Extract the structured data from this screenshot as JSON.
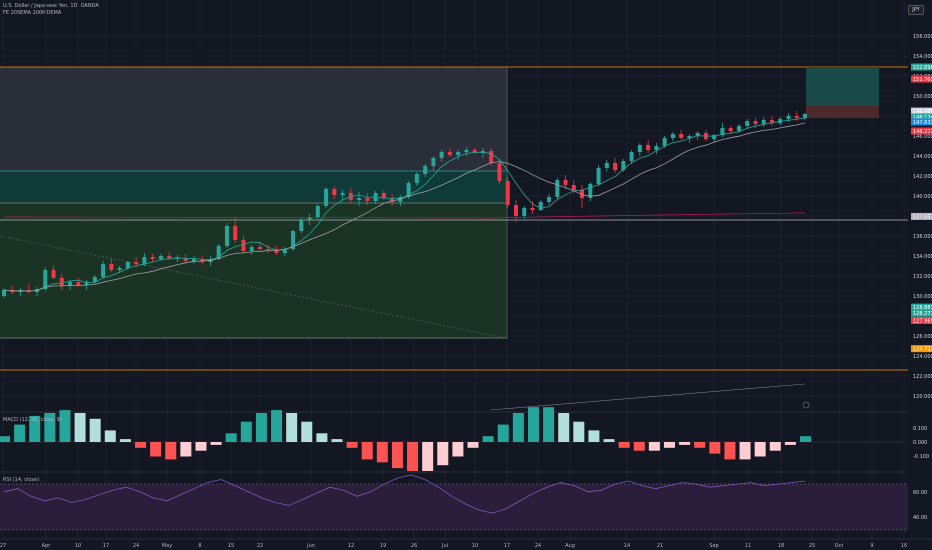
{
  "header": {
    "symbol_line": "U.S. Dollar / Japanese Yen, 1D, OANDA",
    "indicator_line": "FE 20SEMA 200MDEMA",
    "currency_button": "JPY"
  },
  "price_axis": {
    "ticks": [
      "156.000",
      "154.000",
      "152.000",
      "150.000",
      "148.000",
      "146.000",
      "144.000",
      "142.000",
      "140.000",
      "138.000",
      "136.000",
      "134.000",
      "132.000",
      "130.000",
      "128.000",
      "126.000",
      "124.000",
      "122.000",
      "120.000"
    ],
    "tags": [
      {
        "text": "152.898",
        "value": 152.898,
        "color": "#26a69a"
      },
      {
        "text": "151.703",
        "value": 151.703,
        "color": "#f23645"
      },
      {
        "text": "148.488",
        "value": 148.488,
        "color": "#d1d4dc"
      },
      {
        "text": "148.174",
        "value": 147.9,
        "color": "#26a69a"
      },
      {
        "text": "147.633",
        "value": 147.4,
        "color": "#1e88e5"
      },
      {
        "text": "146.272",
        "value": 146.5,
        "color": "#f23645"
      },
      {
        "text": "137.957",
        "value": 137.957,
        "color": "#b2b5be"
      },
      {
        "text": "128.887",
        "value": 128.887,
        "color": "#26a69a"
      },
      {
        "text": "128.277",
        "value": 128.277,
        "color": "#26a69a"
      },
      {
        "text": "127.985",
        "value": 127.55,
        "color": "#f23645"
      },
      {
        "text": "124.733",
        "value": 124.733,
        "color": "#ff9800"
      }
    ]
  },
  "macd": {
    "label": "MACD (12, 26, close, 9)",
    "ticks": [
      "0.100",
      "0.000",
      "-0.100"
    ]
  },
  "rsi": {
    "label": "RSI (14, close)",
    "ticks": [
      "60.00",
      "40.00"
    ]
  },
  "time_axis": [
    "27",
    "Apr",
    "10",
    "17",
    "24",
    "May",
    "8",
    "15",
    "22",
    "Jun",
    "12",
    "19",
    "26",
    "Jul",
    "10",
    "17",
    "24",
    "Aug",
    "14",
    "21",
    "Sep",
    "11",
    "18",
    "25",
    "Oct",
    "9",
    "16"
  ],
  "chart_data": {
    "type": "candlestick",
    "instrument": "USDJPY",
    "candles": [
      [
        130.0,
        130.8,
        129.8,
        130.6
      ],
      [
        130.6,
        131.0,
        130.2,
        130.4
      ],
      [
        130.4,
        130.8,
        130.0,
        130.6
      ],
      [
        130.6,
        131.2,
        130.3,
        130.4
      ],
      [
        130.4,
        130.9,
        130.0,
        130.7
      ],
      [
        130.7,
        132.9,
        130.5,
        132.6
      ],
      [
        132.6,
        133.1,
        131.7,
        131.8
      ],
      [
        131.8,
        132.2,
        130.6,
        131.0
      ],
      [
        131.0,
        131.6,
        130.6,
        131.4
      ],
      [
        131.4,
        131.8,
        130.9,
        131.1
      ],
      [
        131.1,
        131.6,
        130.6,
        131.4
      ],
      [
        131.4,
        132.1,
        131.1,
        131.9
      ],
      [
        131.9,
        133.5,
        131.7,
        133.2
      ],
      [
        133.2,
        133.7,
        132.4,
        132.6
      ],
      [
        132.6,
        133.0,
        132.3,
        132.8
      ],
      [
        132.8,
        133.5,
        132.6,
        133.4
      ],
      [
        133.4,
        133.9,
        132.8,
        133.2
      ],
      [
        133.2,
        134.3,
        133.0,
        133.9
      ],
      [
        133.9,
        134.2,
        133.4,
        133.7
      ],
      [
        133.7,
        134.2,
        133.5,
        134.0
      ],
      [
        134.0,
        134.4,
        133.6,
        133.8
      ],
      [
        133.8,
        134.1,
        133.4,
        133.8
      ],
      [
        133.8,
        134.2,
        133.3,
        133.5
      ],
      [
        133.5,
        134.0,
        133.2,
        133.7
      ],
      [
        133.7,
        134.1,
        133.1,
        133.4
      ],
      [
        133.4,
        134.0,
        133.0,
        133.7
      ],
      [
        133.7,
        135.2,
        133.6,
        135.0
      ],
      [
        135.0,
        137.3,
        134.8,
        137.0
      ],
      [
        137.0,
        137.8,
        135.3,
        135.6
      ],
      [
        135.6,
        136.0,
        134.2,
        134.5
      ],
      [
        134.5,
        135.1,
        134.1,
        134.9
      ],
      [
        134.9,
        135.4,
        134.6,
        134.7
      ],
      [
        134.7,
        135.1,
        134.3,
        134.6
      ],
      [
        134.6,
        135.0,
        134.1,
        134.3
      ],
      [
        134.3,
        134.9,
        134.0,
        134.7
      ],
      [
        134.7,
        136.6,
        134.5,
        136.5
      ],
      [
        136.5,
        137.8,
        136.3,
        137.6
      ],
      [
        137.6,
        138.2,
        137.1,
        137.9
      ],
      [
        137.9,
        139.2,
        137.6,
        139.0
      ],
      [
        139.0,
        140.9,
        138.8,
        140.7
      ],
      [
        140.7,
        141.0,
        139.7,
        140.1
      ],
      [
        140.1,
        140.6,
        139.6,
        140.3
      ],
      [
        140.3,
        140.8,
        139.3,
        139.6
      ],
      [
        139.6,
        140.4,
        139.0,
        139.8
      ],
      [
        139.8,
        140.3,
        139.1,
        139.5
      ],
      [
        139.5,
        140.5,
        139.2,
        140.3
      ],
      [
        140.3,
        140.6,
        139.6,
        139.8
      ],
      [
        139.8,
        140.2,
        139.0,
        139.4
      ],
      [
        139.4,
        140.1,
        139.0,
        139.9
      ],
      [
        139.9,
        141.5,
        139.7,
        141.3
      ],
      [
        141.3,
        142.4,
        141.0,
        142.2
      ],
      [
        142.2,
        143.2,
        141.9,
        143.0
      ],
      [
        143.0,
        144.0,
        142.5,
        143.8
      ],
      [
        143.8,
        144.6,
        143.4,
        144.4
      ],
      [
        144.4,
        144.8,
        143.9,
        144.1
      ],
      [
        144.1,
        144.6,
        143.6,
        144.4
      ],
      [
        144.4,
        144.9,
        144.0,
        144.6
      ],
      [
        144.6,
        144.8,
        144.2,
        144.3
      ],
      [
        144.3,
        144.8,
        143.8,
        144.5
      ],
      [
        144.5,
        144.8,
        143.0,
        143.3
      ],
      [
        143.3,
        143.7,
        141.2,
        141.5
      ],
      [
        141.5,
        141.9,
        138.8,
        139.1
      ],
      [
        139.1,
        139.6,
        137.4,
        138.0
      ],
      [
        138.0,
        139.0,
        137.7,
        138.8
      ],
      [
        138.8,
        139.5,
        138.2,
        138.6
      ],
      [
        138.6,
        139.6,
        138.5,
        139.4
      ],
      [
        139.4,
        140.2,
        139.1,
        139.9
      ],
      [
        139.9,
        141.8,
        139.7,
        141.6
      ],
      [
        141.6,
        142.1,
        140.7,
        141.1
      ],
      [
        141.1,
        141.6,
        140.3,
        140.6
      ],
      [
        140.6,
        141.1,
        138.8,
        139.8
      ],
      [
        139.8,
        141.4,
        139.5,
        141.2
      ],
      [
        141.2,
        143.1,
        141.0,
        142.8
      ],
      [
        142.8,
        143.6,
        142.4,
        143.3
      ],
      [
        143.3,
        143.8,
        142.3,
        142.6
      ],
      [
        142.6,
        143.7,
        142.4,
        143.5
      ],
      [
        143.5,
        144.6,
        143.2,
        144.4
      ],
      [
        144.4,
        145.3,
        144.0,
        145.1
      ],
      [
        145.1,
        145.6,
        144.3,
        144.6
      ],
      [
        144.6,
        145.3,
        144.2,
        145.0
      ],
      [
        145.0,
        146.0,
        144.8,
        145.8
      ],
      [
        145.8,
        146.4,
        145.5,
        146.2
      ],
      [
        146.2,
        146.6,
        145.6,
        145.8
      ],
      [
        145.8,
        146.2,
        145.3,
        146.0
      ],
      [
        146.0,
        146.5,
        145.6,
        146.3
      ],
      [
        146.3,
        146.6,
        145.5,
        145.7
      ],
      [
        145.7,
        146.2,
        145.4,
        146.1
      ],
      [
        146.1,
        147.3,
        145.9,
        146.8
      ],
      [
        146.8,
        147.0,
        146.2,
        146.5
      ],
      [
        146.5,
        147.2,
        146.3,
        147.0
      ],
      [
        147.0,
        147.7,
        146.7,
        147.5
      ],
      [
        147.5,
        147.8,
        146.8,
        147.2
      ],
      [
        147.2,
        147.9,
        146.9,
        147.6
      ],
      [
        147.6,
        148.0,
        147.0,
        147.3
      ],
      [
        147.3,
        147.9,
        147.1,
        147.7
      ],
      [
        147.7,
        148.3,
        147.4,
        148.0
      ],
      [
        148.0,
        148.5,
        147.5,
        147.8
      ],
      [
        147.8,
        148.3,
        147.6,
        148.2
      ]
    ],
    "sma_fast_last": 147.6,
    "sma_slow_last": 146.3,
    "sma_long_last": 137.9,
    "macd_hist": [
      0.02,
      0.06,
      0.09,
      0.1,
      0.11,
      0.1,
      0.08,
      0.04,
      0.01,
      -0.02,
      -0.05,
      -0.06,
      -0.05,
      -0.03,
      -0.01,
      0.03,
      0.07,
      0.1,
      0.11,
      0.1,
      0.07,
      0.03,
      0.01,
      -0.02,
      -0.06,
      -0.07,
      -0.09,
      -0.1,
      -0.1,
      -0.08,
      -0.05,
      -0.02,
      0.02,
      0.06,
      0.1,
      0.12,
      0.12,
      0.1,
      0.07,
      0.04,
      0.01,
      -0.02,
      -0.03,
      -0.03,
      -0.02,
      -0.01,
      -0.02,
      -0.04,
      -0.06,
      -0.06,
      -0.05,
      -0.03,
      -0.01,
      0.02
    ],
    "rsi": [
      55,
      57,
      52,
      49,
      51,
      48,
      50,
      53,
      56,
      58,
      55,
      51,
      49,
      53,
      57,
      61,
      63,
      59,
      55,
      51,
      48,
      46,
      50,
      54,
      58,
      56,
      52,
      55,
      60,
      64,
      66,
      63,
      58,
      52,
      47,
      43,
      41,
      44,
      49,
      54,
      58,
      61,
      59,
      55,
      56,
      60,
      62,
      59,
      57,
      59,
      61,
      60,
      58,
      59,
      60,
      61,
      59,
      60,
      61,
      62
    ]
  }
}
